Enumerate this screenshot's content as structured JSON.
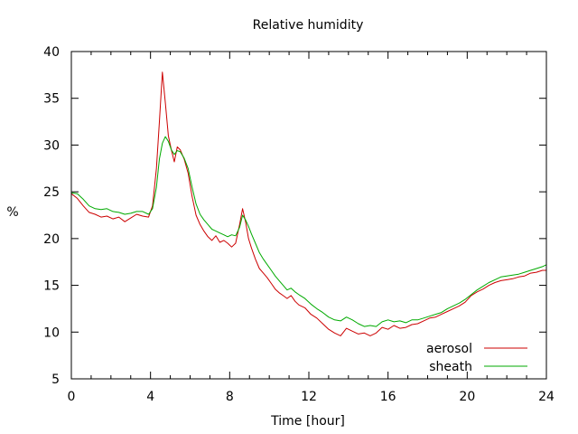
{
  "chart_data": {
    "type": "line",
    "title": "Relative humidity",
    "xlabel": "Time [hour]",
    "ylabel": "%",
    "xlim": [
      0,
      24
    ],
    "ylim": [
      5,
      40
    ],
    "xticks": [
      0,
      4,
      8,
      12,
      16,
      20,
      24
    ],
    "xtick_labels": [
      "0",
      "4",
      "8",
      "12",
      "16",
      "20",
      "24"
    ],
    "yticks": [
      5,
      10,
      15,
      20,
      25,
      30,
      35,
      40
    ],
    "ytick_labels": [
      "5",
      "10",
      "15",
      "20",
      "25",
      "30",
      "35",
      "40"
    ],
    "grid": false,
    "legend_position": "bottom-right",
    "series": [
      {
        "name": "aerosol",
        "color": "#cc0000",
        "x": [
          0,
          0.3,
          0.6,
          0.9,
          1.2,
          1.5,
          1.8,
          2.1,
          2.4,
          2.7,
          3.0,
          3.3,
          3.6,
          3.9,
          4.1,
          4.3,
          4.45,
          4.6,
          4.75,
          4.9,
          5.05,
          5.2,
          5.35,
          5.5,
          5.7,
          5.9,
          6.1,
          6.3,
          6.5,
          6.7,
          6.9,
          7.1,
          7.3,
          7.5,
          7.7,
          7.9,
          8.1,
          8.3,
          8.5,
          8.65,
          8.8,
          8.95,
          9.1,
          9.3,
          9.5,
          9.7,
          9.9,
          10.1,
          10.3,
          10.5,
          10.7,
          10.9,
          11.1,
          11.3,
          11.5,
          11.8,
          12.1,
          12.4,
          12.7,
          13.0,
          13.3,
          13.6,
          13.9,
          14.2,
          14.5,
          14.8,
          15.1,
          15.4,
          15.7,
          16.0,
          16.3,
          16.6,
          16.9,
          17.2,
          17.5,
          17.8,
          18.1,
          18.4,
          18.7,
          19.0,
          19.3,
          19.6,
          19.9,
          20.2,
          20.5,
          20.8,
          21.1,
          21.4,
          21.7,
          22.0,
          22.3,
          22.6,
          22.9,
          23.2,
          23.5,
          23.8,
          24.0
        ],
        "y": [
          24.8,
          24.3,
          23.5,
          22.8,
          22.6,
          22.3,
          22.4,
          22.1,
          22.3,
          21.8,
          22.2,
          22.6,
          22.4,
          22.3,
          23.5,
          27.5,
          32.5,
          37.8,
          34.5,
          31.0,
          29.5,
          28.2,
          29.8,
          29.5,
          28.5,
          27.0,
          24.5,
          22.5,
          21.5,
          20.8,
          20.2,
          19.8,
          20.3,
          19.6,
          19.8,
          19.5,
          19.1,
          19.5,
          21.5,
          23.2,
          21.8,
          20.0,
          19.0,
          17.8,
          16.8,
          16.3,
          15.8,
          15.2,
          14.6,
          14.2,
          13.9,
          13.6,
          13.9,
          13.3,
          12.9,
          12.6,
          11.9,
          11.5,
          10.9,
          10.3,
          9.9,
          9.6,
          10.4,
          10.1,
          9.8,
          9.9,
          9.6,
          9.9,
          10.5,
          10.3,
          10.7,
          10.4,
          10.5,
          10.8,
          10.9,
          11.2,
          11.5,
          11.6,
          11.9,
          12.2,
          12.5,
          12.8,
          13.2,
          13.9,
          14.3,
          14.6,
          15.0,
          15.3,
          15.5,
          15.6,
          15.7,
          15.9,
          16.0,
          16.3,
          16.4,
          16.6,
          16.6
        ]
      },
      {
        "name": "sheath",
        "color": "#00aa00",
        "x": [
          0,
          0.3,
          0.6,
          0.9,
          1.2,
          1.5,
          1.8,
          2.1,
          2.4,
          2.7,
          3.0,
          3.3,
          3.6,
          3.9,
          4.1,
          4.3,
          4.45,
          4.6,
          4.75,
          4.9,
          5.05,
          5.2,
          5.35,
          5.5,
          5.7,
          5.9,
          6.1,
          6.3,
          6.5,
          6.7,
          6.9,
          7.1,
          7.3,
          7.5,
          7.7,
          7.9,
          8.1,
          8.3,
          8.5,
          8.65,
          8.8,
          8.95,
          9.1,
          9.3,
          9.5,
          9.7,
          9.9,
          10.1,
          10.3,
          10.5,
          10.7,
          10.9,
          11.1,
          11.3,
          11.5,
          11.8,
          12.1,
          12.4,
          12.7,
          13.0,
          13.3,
          13.6,
          13.9,
          14.2,
          14.5,
          14.8,
          15.1,
          15.4,
          15.7,
          16.0,
          16.3,
          16.6,
          16.9,
          17.2,
          17.5,
          17.8,
          18.1,
          18.4,
          18.7,
          19.0,
          19.3,
          19.6,
          19.9,
          20.2,
          20.5,
          20.8,
          21.1,
          21.4,
          21.7,
          22.0,
          22.3,
          22.6,
          22.9,
          23.2,
          23.5,
          23.8,
          24.0
        ],
        "y": [
          24.9,
          24.8,
          24.2,
          23.5,
          23.2,
          23.1,
          23.2,
          22.9,
          22.8,
          22.6,
          22.7,
          22.9,
          22.9,
          22.6,
          23.2,
          25.5,
          28.5,
          30.2,
          30.9,
          30.4,
          29.5,
          29.0,
          29.4,
          29.3,
          28.6,
          27.5,
          25.5,
          23.7,
          22.6,
          22.0,
          21.5,
          21.0,
          20.8,
          20.6,
          20.4,
          20.2,
          20.4,
          20.3,
          21.2,
          22.5,
          22.0,
          21.3,
          20.5,
          19.5,
          18.5,
          17.8,
          17.2,
          16.6,
          16.0,
          15.5,
          15.0,
          14.5,
          14.7,
          14.3,
          14.0,
          13.6,
          13.0,
          12.5,
          12.1,
          11.6,
          11.3,
          11.2,
          11.6,
          11.3,
          10.9,
          10.6,
          10.7,
          10.6,
          11.1,
          11.3,
          11.1,
          11.2,
          11.0,
          11.3,
          11.3,
          11.5,
          11.7,
          11.9,
          12.1,
          12.5,
          12.8,
          13.1,
          13.5,
          14.0,
          14.5,
          14.9,
          15.3,
          15.6,
          15.9,
          16.0,
          16.1,
          16.2,
          16.4,
          16.6,
          16.8,
          17.0,
          17.2
        ]
      }
    ]
  }
}
